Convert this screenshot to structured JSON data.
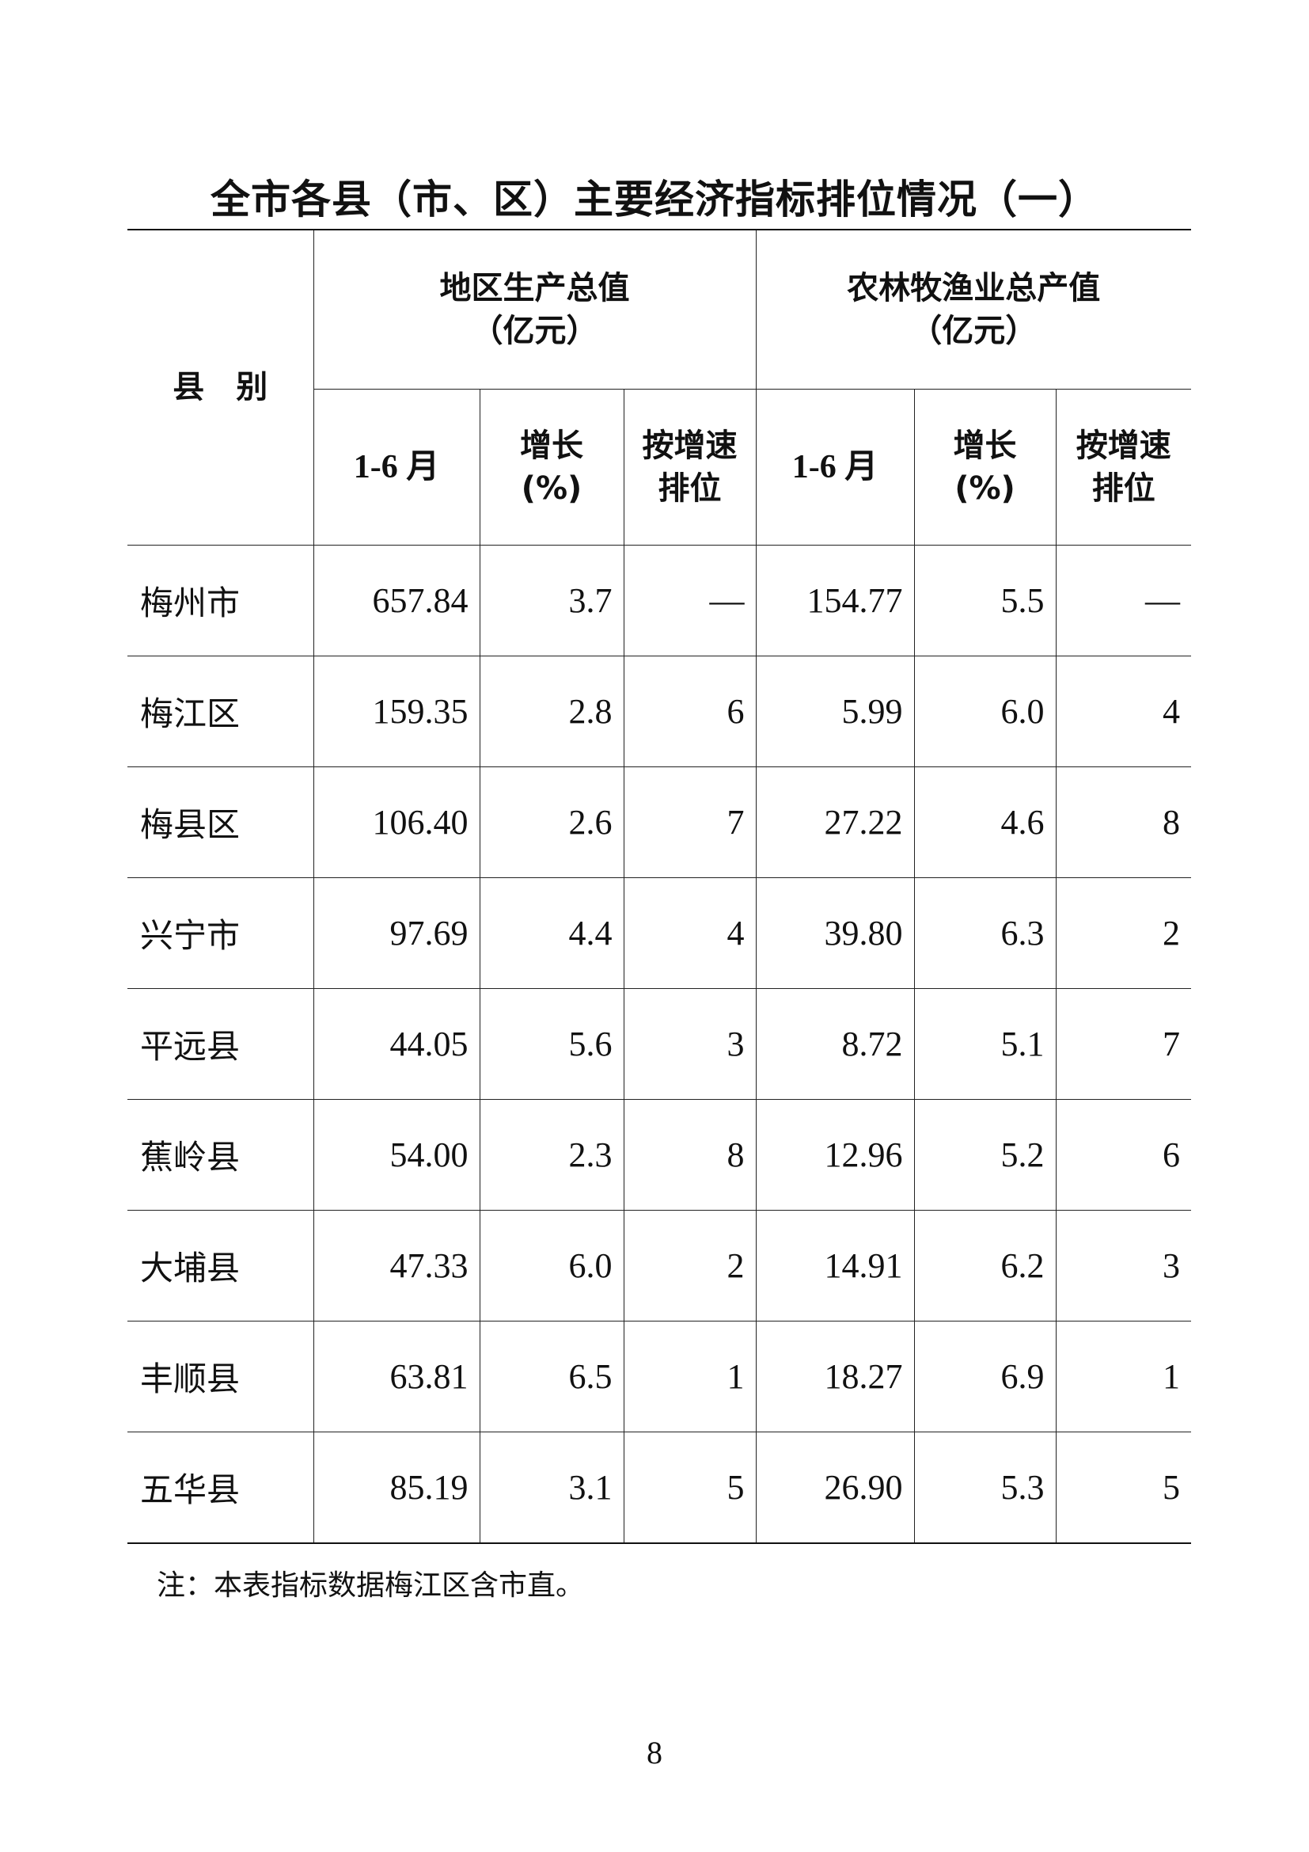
{
  "title": "全市各县（市、区）主要经济指标排位情况（一）",
  "header": {
    "county": "县　别",
    "group1": {
      "line1": "地区生产总值",
      "line2": "（亿元）"
    },
    "group2": {
      "line1": "农林牧渔业总产值",
      "line2": "（亿元）"
    },
    "sub": {
      "period": "1-6 月",
      "growth_line1": "增长",
      "growth_line2": "(%)",
      "rank_line1": "按增速",
      "rank_line2": "排位"
    }
  },
  "rows": [
    [
      "梅州市",
      "657.84",
      "3.7",
      "—",
      "154.77",
      "5.5",
      "—"
    ],
    [
      "梅江区",
      "159.35",
      "2.8",
      "6",
      "5.99",
      "6.0",
      "4"
    ],
    [
      "梅县区",
      "106.40",
      "2.6",
      "7",
      "27.22",
      "4.6",
      "8"
    ],
    [
      "兴宁市",
      "97.69",
      "4.4",
      "4",
      "39.80",
      "6.3",
      "2"
    ],
    [
      "平远县",
      "44.05",
      "5.6",
      "3",
      "8.72",
      "5.1",
      "7"
    ],
    [
      "蕉岭县",
      "54.00",
      "2.3",
      "8",
      "12.96",
      "5.2",
      "6"
    ],
    [
      "大埔县",
      "47.33",
      "6.0",
      "2",
      "14.91",
      "6.2",
      "3"
    ],
    [
      "丰顺县",
      "63.81",
      "6.5",
      "1",
      "18.27",
      "6.9",
      "1"
    ],
    [
      "五华县",
      "85.19",
      "3.1",
      "5",
      "26.90",
      "5.3",
      "5"
    ]
  ],
  "note": "注：本表指标数据梅江区含市直。",
  "page_number": "8"
}
